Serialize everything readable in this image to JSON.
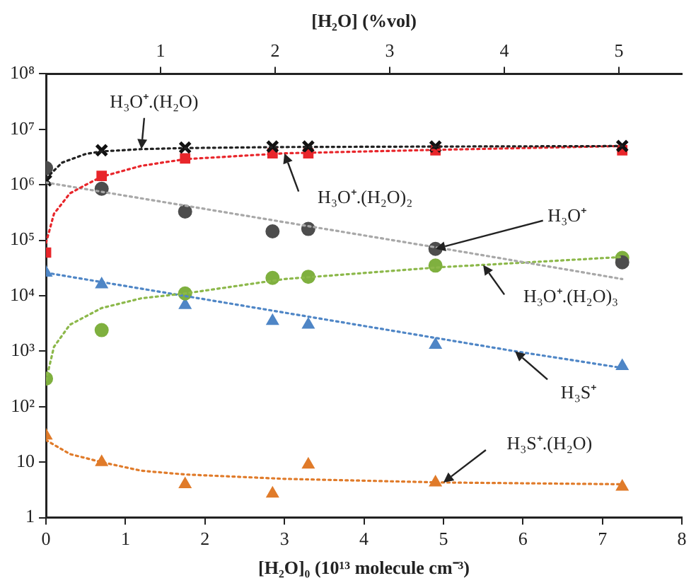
{
  "chart_data": {
    "type": "scatter",
    "xlabel": "[H₂O]₀ (10¹³ molecule cm⁻³)",
    "x2label": "[H₂O] (%vol)",
    "x": [
      0,
      0.7,
      1.75,
      2.85,
      3.3,
      4.9,
      7.25
    ],
    "xlim": [
      0,
      8
    ],
    "xticks": [
      0,
      1,
      2,
      3,
      4,
      5,
      6,
      7,
      8
    ],
    "x2lim": [
      0,
      5.55
    ],
    "x2ticks": [
      1,
      2,
      3,
      4,
      5
    ],
    "log": true,
    "ylim": [
      1,
      100000000
    ],
    "yticks": [
      1,
      10,
      {
        "value": 100,
        "label": "10²"
      },
      {
        "value": 1000,
        "label": "10³"
      },
      {
        "value": 10000,
        "label": "10⁴"
      },
      {
        "value": 100000,
        "label": "10⁵"
      },
      {
        "value": 1000000,
        "label": "10⁶"
      },
      {
        "value": 10000000,
        "label": "10⁷"
      },
      {
        "value": 100000000,
        "label": "10⁸"
      }
    ],
    "grid": false,
    "legend": false,
    "series": [
      {
        "type": "line",
        "color": "#222222",
        "line_style": "dotted",
        "marker": "none",
        "x": [
          0,
          0.2,
          0.5,
          0.7,
          1.2,
          1.75,
          3,
          5,
          7.25
        ],
        "values": [
          1300000,
          2500000,
          3600000,
          4000000,
          4400000,
          4600000,
          4800000,
          4900000,
          5000000
        ]
      },
      {
        "type": "line",
        "color": "#e8262b",
        "line_style": "dotted",
        "marker": "none",
        "x": [
          0,
          0.1,
          0.3,
          0.5,
          0.7,
          1.2,
          1.75,
          3,
          5,
          7.25
        ],
        "values": [
          90000,
          300000,
          700000,
          1000000,
          1400000,
          2200000,
          2900000,
          3700000,
          4300000,
          5000000
        ]
      },
      {
        "type": "line",
        "color": "#a8a8a8",
        "line_style": "dotted",
        "marker": "none",
        "x": [
          0,
          5.3,
          7.25
        ],
        "values": [
          1100000,
          60000,
          20000
        ]
      },
      {
        "type": "line",
        "color": "#8cb84a",
        "line_style": "dotted",
        "marker": "none",
        "x": [
          0,
          0.1,
          0.3,
          0.7,
          1.2,
          1.75,
          3,
          5,
          5.5,
          7.25
        ],
        "values": [
          300,
          1200,
          3000,
          6000,
          9000,
          11000,
          20000,
          33000,
          36000,
          50000
        ]
      },
      {
        "type": "line",
        "color": "#4f86c6",
        "line_style": "dotted",
        "marker": "none",
        "x": [
          0,
          5.9,
          7.25
        ],
        "values": [
          26000,
          1000,
          500
        ]
      },
      {
        "type": "line",
        "color": "#e07b2a",
        "line_style": "dotted",
        "marker": "none",
        "x": [
          0,
          0.3,
          0.7,
          1.2,
          1.75,
          3,
          5,
          7.25
        ],
        "values": [
          25,
          14,
          10,
          7,
          6,
          5,
          4.3,
          4
        ]
      },
      {
        "color": "#111111",
        "marker": "cross",
        "values": [
          1200000,
          4200000,
          4700000,
          4900000,
          4900000,
          4900000,
          5000000
        ]
      },
      {
        "color": "#e8262b",
        "marker": "square",
        "values": [
          60000,
          1450000,
          3000000,
          3700000,
          3700000,
          4200000,
          4200000
        ]
      },
      {
        "color": "#4d4d4d",
        "marker": "circle",
        "values": [
          2000000,
          850000,
          330000,
          145000,
          160000,
          70000,
          40000
        ]
      },
      {
        "color": "#7fb03f",
        "marker": "circle",
        "values": [
          320,
          2400,
          11000,
          21000,
          22000,
          35000,
          48000
        ]
      },
      {
        "color": "#4f86c6",
        "marker": "triangle",
        "values": [
          26000,
          16000,
          6800,
          3500,
          3000,
          1300,
          540
        ]
      },
      {
        "color": "#e07b2a",
        "marker": "triangle",
        "values": [
          30,
          10,
          4,
          2.7,
          9,
          4.3,
          3.6
        ]
      }
    ],
    "annotations": [
      {
        "text": "H₃O⁺.(H₂O)",
        "x": 1.2,
        "y": 4400000
      },
      {
        "text": "H₃O⁺.(H₂O)₂",
        "x": 3,
        "y": 3700000
      },
      {
        "text": "H₃O⁺",
        "x": 4.9,
        "y": 70000
      },
      {
        "text": "H₃O⁺.(H₂O)₃",
        "x": 5.5,
        "y": 36000
      },
      {
        "text": "H₃S⁺",
        "x": 5.9,
        "y": 1000
      },
      {
        "text": "H₃S⁺.(H₂O)",
        "x": 5,
        "y": 4.3
      }
    ]
  }
}
